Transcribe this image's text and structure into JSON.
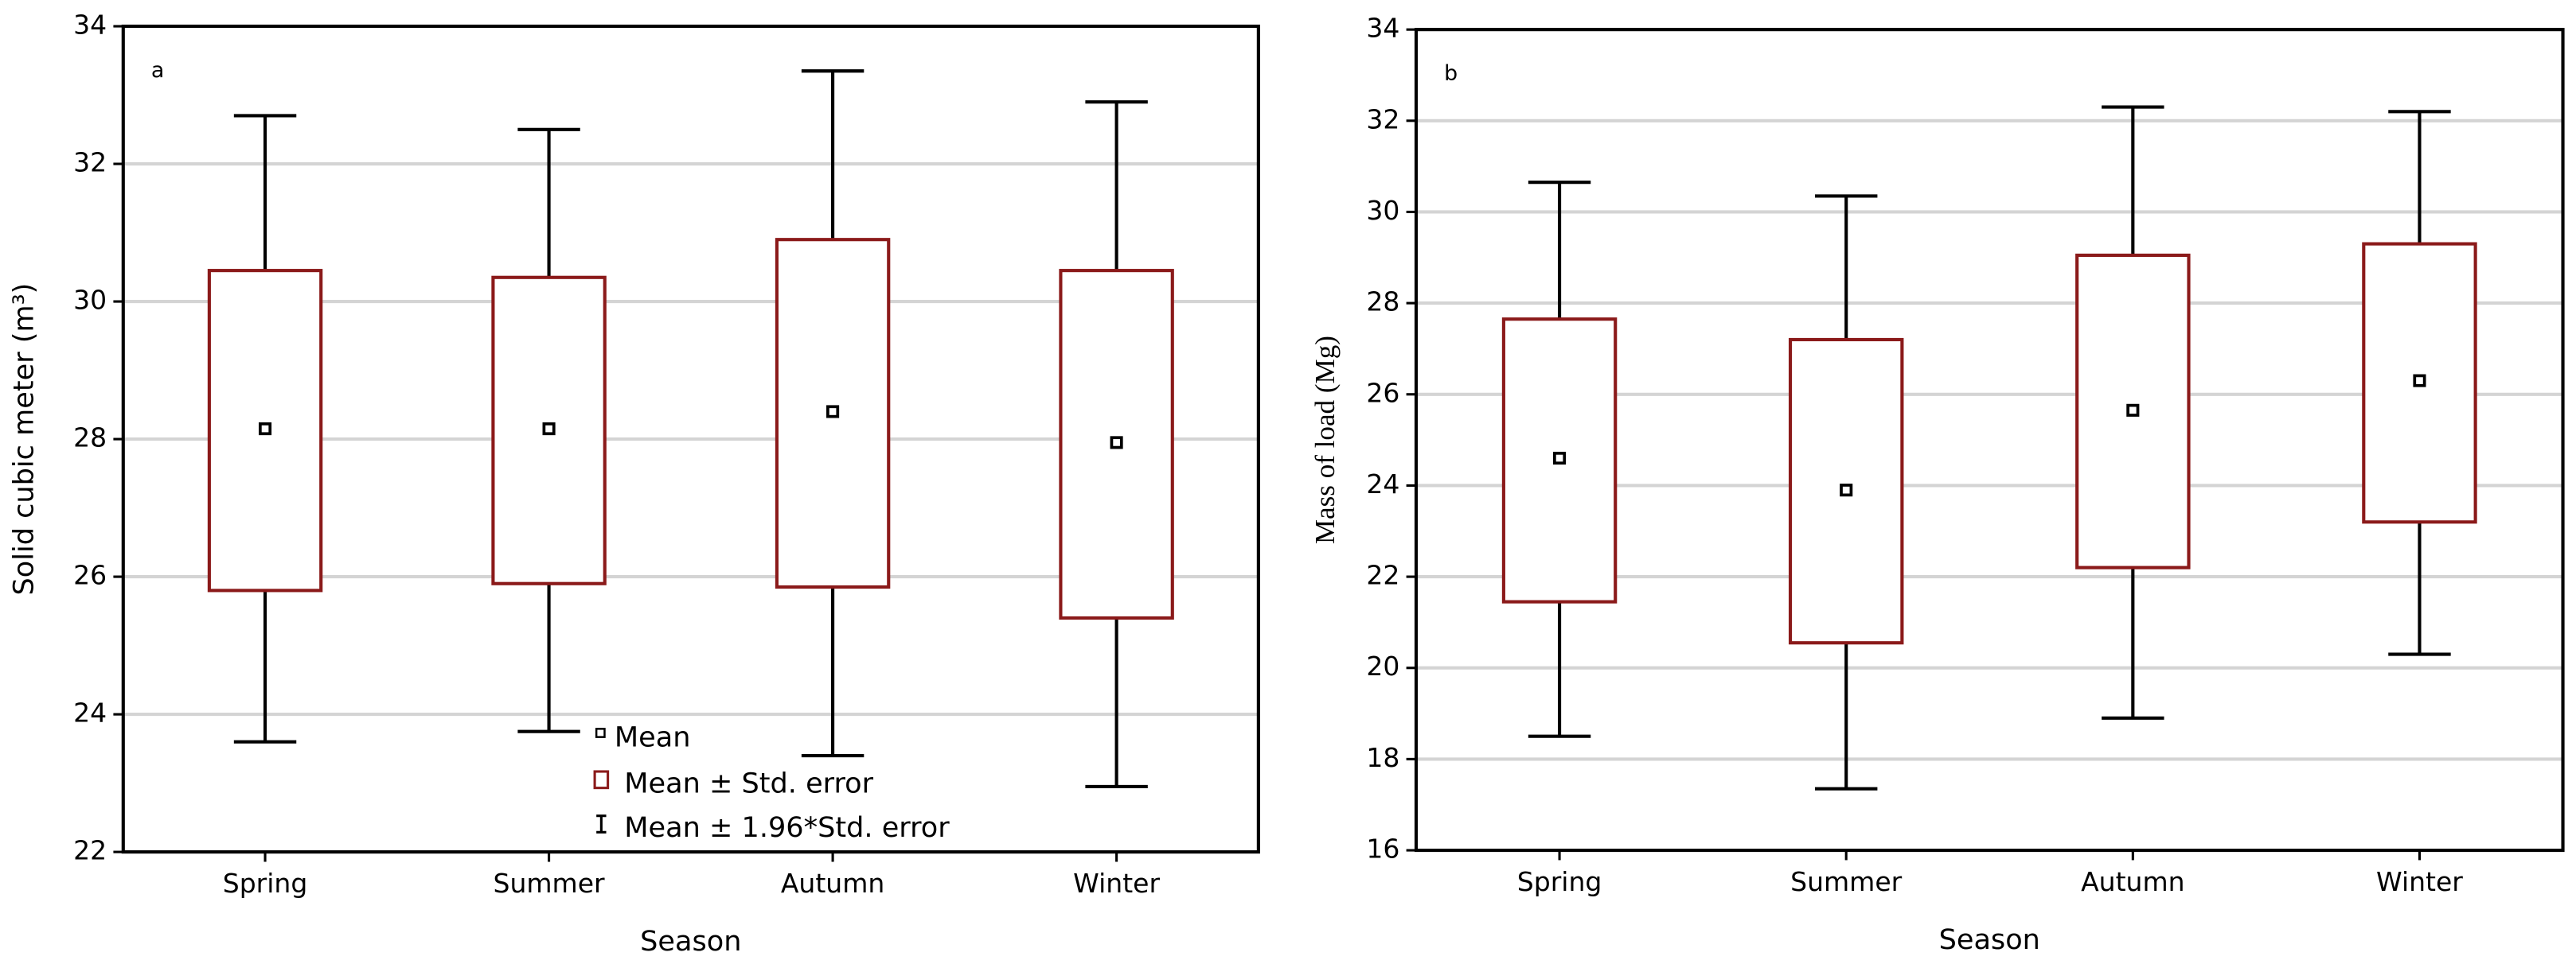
{
  "chart_data": [
    {
      "type": "box",
      "panel_label": "a",
      "xlabel": "Season",
      "ylabel": "Solid cubic meter (m³)",
      "categories": [
        "Spring",
        "Summer",
        "Autumn",
        "Winter"
      ],
      "means": [
        28.15,
        28.15,
        28.4,
        27.95
      ],
      "box_lower": [
        25.8,
        25.9,
        25.85,
        25.4
      ],
      "box_upper": [
        30.45,
        30.35,
        30.9,
        30.45
      ],
      "whisker_lower": [
        23.6,
        23.75,
        23.4,
        22.95
      ],
      "whisker_upper": [
        32.7,
        32.5,
        33.35,
        32.9
      ],
      "box_color": "#8b1a1a",
      "whisker_color": "#000000",
      "ylim": [
        22,
        34
      ],
      "yticks": [
        22,
        24,
        26,
        28,
        30,
        32,
        34
      ],
      "grid": true,
      "legend": [
        "Mean",
        "Mean ± Std. error",
        "Mean ± 1.96*Std. error"
      ]
    },
    {
      "type": "box",
      "panel_label": "b",
      "xlabel": "Season",
      "ylabel": "Mass of load (Mg)",
      "categories": [
        "Spring",
        "Summer",
        "Autumn",
        "Winter"
      ],
      "means": [
        24.6,
        23.9,
        25.65,
        26.3
      ],
      "box_lower": [
        21.45,
        20.55,
        22.2,
        23.2
      ],
      "box_upper": [
        27.65,
        27.2,
        29.05,
        29.3
      ],
      "whisker_lower": [
        18.5,
        17.35,
        18.9,
        20.3
      ],
      "whisker_upper": [
        30.65,
        30.35,
        32.3,
        32.2
      ],
      "box_color": "#8b1a1a",
      "whisker_color": "#000000",
      "ylim": [
        16,
        34
      ],
      "yticks": [
        16,
        18,
        20,
        22,
        24,
        26,
        28,
        30,
        32,
        34
      ],
      "grid": true
    }
  ]
}
